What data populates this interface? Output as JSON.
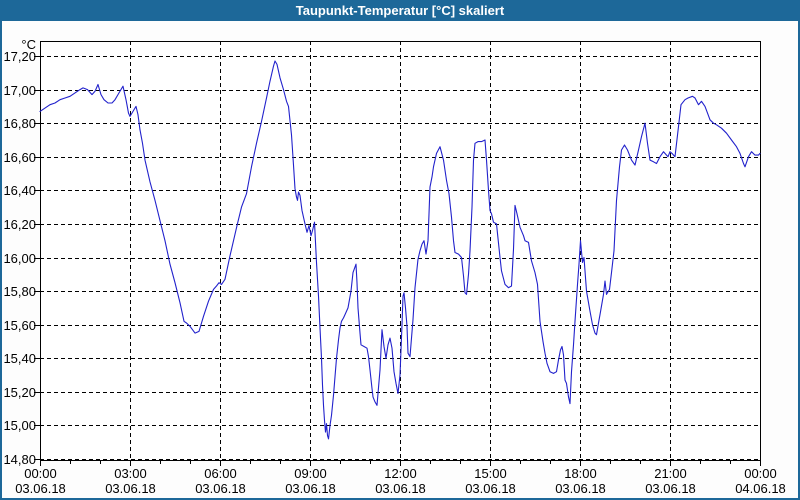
{
  "window": {
    "title": "Taupunkt-Temperatur [°C] skaliert"
  },
  "colors": {
    "titlebar_bg": "#1d6899",
    "border": "#1d6899",
    "window_bg": "#fdfdfd",
    "plot_bg": "#ffffff",
    "grid": "#000000",
    "frame": "#000000",
    "text": "#000000",
    "line": "#2222cc"
  },
  "y_axis": {
    "unit": "°C",
    "tick_labels": [
      "17,20",
      "17,00",
      "16,80",
      "16,60",
      "16,40",
      "16,20",
      "16,00",
      "15,80",
      "15,60",
      "15,40",
      "15,20",
      "15,00",
      "14,80"
    ],
    "tick_values": [
      17.2,
      17.0,
      16.8,
      16.6,
      16.4,
      16.2,
      16.0,
      15.8,
      15.6,
      15.4,
      15.2,
      15.0,
      14.8
    ]
  },
  "x_axis": {
    "major_ticks": [
      {
        "hour": 0,
        "time": "00:00",
        "date": "03.06.18"
      },
      {
        "hour": 3,
        "time": "03:00",
        "date": "03.06.18"
      },
      {
        "hour": 6,
        "time": "06:00",
        "date": "03.06.18"
      },
      {
        "hour": 9,
        "time": "09:00",
        "date": "03.06.18"
      },
      {
        "hour": 12,
        "time": "12:00",
        "date": "03.06.18"
      },
      {
        "hour": 15,
        "time": "15:00",
        "date": "03.06.18"
      },
      {
        "hour": 18,
        "time": "18:00",
        "date": "03.06.18"
      },
      {
        "hour": 21,
        "time": "21:00",
        "date": "03.06.18"
      },
      {
        "hour": 24,
        "time": "00:00",
        "date": "04.06.18"
      }
    ],
    "minor_tick_every_hours": 1
  },
  "chart_data": {
    "type": "line",
    "title": "Taupunkt-Temperatur [°C] skaliert",
    "ylabel": "°C",
    "ylim": [
      14.8,
      17.2
    ],
    "y_tick_step": 0.2,
    "xlim_minutes": [
      0,
      1440
    ],
    "x_major_step_hours": 3,
    "grid": true,
    "legend": "none",
    "series": [
      {
        "name": "Taupunkt-Temperatur skaliert",
        "color": "#2222cc",
        "x_unit": "minutes since 03.06.18 00:00",
        "points": [
          [
            0,
            16.87
          ],
          [
            10,
            16.89
          ],
          [
            20,
            16.91
          ],
          [
            30,
            16.92
          ],
          [
            40,
            16.94
          ],
          [
            50,
            16.95
          ],
          [
            60,
            16.96
          ],
          [
            70,
            16.98
          ],
          [
            80,
            17.0
          ],
          [
            86,
            17.01
          ],
          [
            95,
            17.0
          ],
          [
            104,
            16.97
          ],
          [
            110,
            16.99
          ],
          [
            116,
            17.03
          ],
          [
            122,
            16.97
          ],
          [
            128,
            16.94
          ],
          [
            136,
            16.92
          ],
          [
            144,
            16.92
          ],
          [
            150,
            16.94
          ],
          [
            158,
            16.98
          ],
          [
            166,
            17.02
          ],
          [
            172,
            16.94
          ],
          [
            177,
            16.86
          ],
          [
            180,
            16.84
          ],
          [
            186,
            16.87
          ],
          [
            192,
            16.9
          ],
          [
            196,
            16.85
          ],
          [
            200,
            16.76
          ],
          [
            205,
            16.68
          ],
          [
            210,
            16.58
          ],
          [
            220,
            16.45
          ],
          [
            230,
            16.34
          ],
          [
            240,
            16.22
          ],
          [
            250,
            16.1
          ],
          [
            260,
            15.96
          ],
          [
            270,
            15.85
          ],
          [
            280,
            15.73
          ],
          [
            288,
            15.62
          ],
          [
            293,
            15.61
          ],
          [
            300,
            15.59
          ],
          [
            310,
            15.55
          ],
          [
            318,
            15.56
          ],
          [
            327,
            15.65
          ],
          [
            337,
            15.74
          ],
          [
            347,
            15.81
          ],
          [
            353,
            15.83
          ],
          [
            358,
            15.85
          ],
          [
            363,
            15.84
          ],
          [
            370,
            15.87
          ],
          [
            380,
            16.01
          ],
          [
            394,
            16.19
          ],
          [
            403,
            16.3
          ],
          [
            413,
            16.38
          ],
          [
            423,
            16.54
          ],
          [
            433,
            16.68
          ],
          [
            443,
            16.81
          ],
          [
            453,
            16.95
          ],
          [
            460,
            17.05
          ],
          [
            467,
            17.14
          ],
          [
            470,
            17.17
          ],
          [
            474,
            17.15
          ],
          [
            480,
            17.07
          ],
          [
            487,
            17.0
          ],
          [
            493,
            16.93
          ],
          [
            497,
            16.9
          ],
          [
            503,
            16.73
          ],
          [
            507,
            16.55
          ],
          [
            510,
            16.41
          ],
          [
            513,
            16.36
          ],
          [
            515,
            16.34
          ],
          [
            517,
            16.39
          ],
          [
            520,
            16.37
          ],
          [
            524,
            16.28
          ],
          [
            527,
            16.24
          ],
          [
            530,
            16.2
          ],
          [
            534,
            16.15
          ],
          [
            538,
            16.19
          ],
          [
            542,
            16.13
          ],
          [
            545,
            16.16
          ],
          [
            549,
            16.21
          ],
          [
            553,
            15.97
          ],
          [
            557,
            15.77
          ],
          [
            560,
            15.58
          ],
          [
            563,
            15.4
          ],
          [
            565,
            15.24
          ],
          [
            567,
            15.12
          ],
          [
            569,
            15.03
          ],
          [
            571,
            14.96
          ],
          [
            573,
            15.01
          ],
          [
            575,
            14.94
          ],
          [
            577,
            14.92
          ],
          [
            580,
            15.0
          ],
          [
            583,
            15.06
          ],
          [
            587,
            15.18
          ],
          [
            590,
            15.29
          ],
          [
            593,
            15.4
          ],
          [
            597,
            15.51
          ],
          [
            600,
            15.58
          ],
          [
            603,
            15.62
          ],
          [
            607,
            15.64
          ],
          [
            610,
            15.66
          ],
          [
            616,
            15.7
          ],
          [
            622,
            15.8
          ],
          [
            626,
            15.91
          ],
          [
            632,
            15.96
          ],
          [
            634,
            15.85
          ],
          [
            636,
            15.7
          ],
          [
            640,
            15.55
          ],
          [
            642,
            15.48
          ],
          [
            648,
            15.47
          ],
          [
            654,
            15.46
          ],
          [
            657,
            15.41
          ],
          [
            660,
            15.33
          ],
          [
            664,
            15.22
          ],
          [
            666,
            15.17
          ],
          [
            670,
            15.14
          ],
          [
            674,
            15.12
          ],
          [
            680,
            15.33
          ],
          [
            684,
            15.57
          ],
          [
            688,
            15.47
          ],
          [
            692,
            15.4
          ],
          [
            696,
            15.48
          ],
          [
            700,
            15.52
          ],
          [
            704,
            15.46
          ],
          [
            708,
            15.32
          ],
          [
            712,
            15.25
          ],
          [
            716,
            15.19
          ],
          [
            720,
            15.3
          ],
          [
            724,
            15.6
          ],
          [
            726,
            15.77
          ],
          [
            728,
            15.79
          ],
          [
            731,
            15.7
          ],
          [
            734,
            15.59
          ],
          [
            736,
            15.43
          ],
          [
            740,
            15.41
          ],
          [
            746,
            15.63
          ],
          [
            750,
            15.82
          ],
          [
            756,
            15.99
          ],
          [
            760,
            16.04
          ],
          [
            764,
            16.08
          ],
          [
            768,
            16.1
          ],
          [
            772,
            16.02
          ],
          [
            776,
            16.1
          ],
          [
            780,
            16.42
          ],
          [
            784,
            16.48
          ],
          [
            787,
            16.54
          ],
          [
            793,
            16.62
          ],
          [
            800,
            16.66
          ],
          [
            807,
            16.58
          ],
          [
            813,
            16.46
          ],
          [
            818,
            16.38
          ],
          [
            823,
            16.24
          ],
          [
            827,
            16.1
          ],
          [
            830,
            16.03
          ],
          [
            837,
            16.02
          ],
          [
            843,
            16.0
          ],
          [
            847,
            15.89
          ],
          [
            850,
            15.79
          ],
          [
            853,
            15.78
          ],
          [
            857,
            15.9
          ],
          [
            860,
            16.04
          ],
          [
            864,
            16.3
          ],
          [
            867,
            16.58
          ],
          [
            870,
            16.68
          ],
          [
            876,
            16.69
          ],
          [
            883,
            16.69
          ],
          [
            890,
            16.7
          ],
          [
            893,
            16.58
          ],
          [
            897,
            16.4
          ],
          [
            900,
            16.28
          ],
          [
            903,
            16.26
          ],
          [
            907,
            16.21
          ],
          [
            913,
            16.2
          ],
          [
            920,
            16.0
          ],
          [
            923,
            15.92
          ],
          [
            930,
            15.84
          ],
          [
            937,
            15.82
          ],
          [
            943,
            15.83
          ],
          [
            947,
            16.05
          ],
          [
            950,
            16.31
          ],
          [
            954,
            16.26
          ],
          [
            960,
            16.18
          ],
          [
            967,
            16.13
          ],
          [
            970,
            16.1
          ],
          [
            977,
            16.09
          ],
          [
            983,
            15.98
          ],
          [
            990,
            15.91
          ],
          [
            995,
            15.84
          ],
          [
            1000,
            15.62
          ],
          [
            1006,
            15.5
          ],
          [
            1010,
            15.43
          ],
          [
            1014,
            15.37
          ],
          [
            1020,
            15.32
          ],
          [
            1027,
            15.31
          ],
          [
            1033,
            15.32
          ],
          [
            1037,
            15.39
          ],
          [
            1041,
            15.45
          ],
          [
            1044,
            15.47
          ],
          [
            1047,
            15.42
          ],
          [
            1050,
            15.27
          ],
          [
            1053,
            15.25
          ],
          [
            1057,
            15.17
          ],
          [
            1060,
            15.13
          ],
          [
            1063,
            15.32
          ],
          [
            1067,
            15.48
          ],
          [
            1070,
            15.62
          ],
          [
            1075,
            15.84
          ],
          [
            1078,
            15.96
          ],
          [
            1081,
            16.1
          ],
          [
            1085,
            15.97
          ],
          [
            1088,
            16.0
          ],
          [
            1093,
            15.8
          ],
          [
            1100,
            15.68
          ],
          [
            1105,
            15.6
          ],
          [
            1110,
            15.55
          ],
          [
            1113,
            15.54
          ],
          [
            1117,
            15.61
          ],
          [
            1120,
            15.66
          ],
          [
            1127,
            15.78
          ],
          [
            1130,
            15.86
          ],
          [
            1133,
            15.78
          ],
          [
            1139,
            15.81
          ],
          [
            1143,
            15.91
          ],
          [
            1148,
            16.04
          ],
          [
            1153,
            16.34
          ],
          [
            1159,
            16.54
          ],
          [
            1163,
            16.64
          ],
          [
            1169,
            16.67
          ],
          [
            1175,
            16.64
          ],
          [
            1183,
            16.58
          ],
          [
            1190,
            16.55
          ],
          [
            1197,
            16.64
          ],
          [
            1203,
            16.72
          ],
          [
            1210,
            16.8
          ],
          [
            1215,
            16.68
          ],
          [
            1220,
            16.58
          ],
          [
            1227,
            16.57
          ],
          [
            1233,
            16.56
          ],
          [
            1240,
            16.6
          ],
          [
            1247,
            16.63
          ],
          [
            1256,
            16.6
          ],
          [
            1260,
            16.63
          ],
          [
            1264,
            16.62
          ],
          [
            1270,
            16.6
          ],
          [
            1277,
            16.78
          ],
          [
            1282,
            16.91
          ],
          [
            1290,
            16.94
          ],
          [
            1296,
            16.95
          ],
          [
            1305,
            16.96
          ],
          [
            1310,
            16.95
          ],
          [
            1317,
            16.91
          ],
          [
            1323,
            16.93
          ],
          [
            1330,
            16.9
          ],
          [
            1335,
            16.86
          ],
          [
            1340,
            16.82
          ],
          [
            1347,
            16.8
          ],
          [
            1353,
            16.79
          ],
          [
            1363,
            16.77
          ],
          [
            1373,
            16.74
          ],
          [
            1383,
            16.7
          ],
          [
            1393,
            16.66
          ],
          [
            1400,
            16.62
          ],
          [
            1407,
            16.56
          ],
          [
            1410,
            16.54
          ],
          [
            1417,
            16.6
          ],
          [
            1423,
            16.63
          ],
          [
            1430,
            16.61
          ],
          [
            1437,
            16.61
          ],
          [
            1440,
            16.62
          ]
        ]
      }
    ]
  }
}
